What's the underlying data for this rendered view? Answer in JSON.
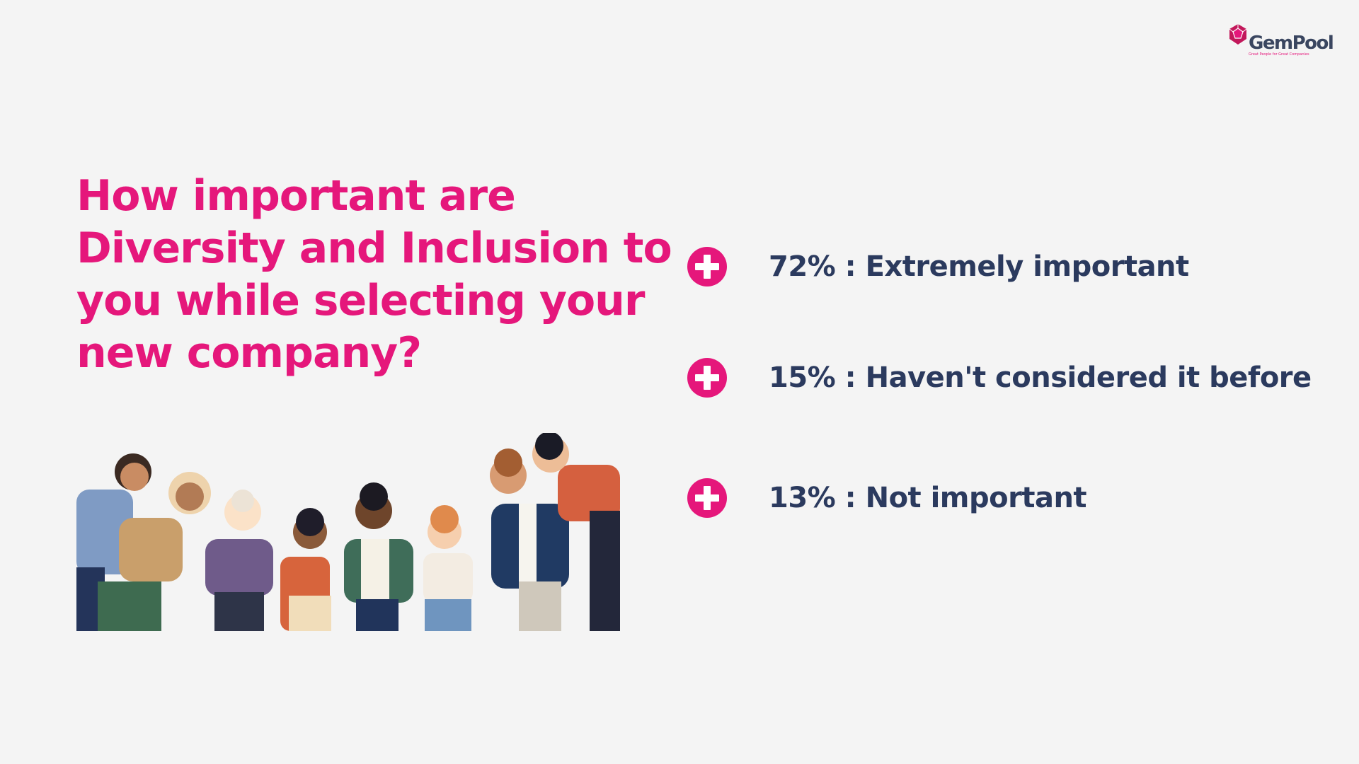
{
  "logo": {
    "name": "GemPool",
    "tagline": "Great People for Great Companies"
  },
  "title": {
    "lines": [
      "How important are",
      "Diversity and Inclusion to",
      "you while selecting your",
      "new company?"
    ]
  },
  "items": [
    "72% : Extremely important",
    "15% : Haven't considered it before",
    "13% : Not important"
  ]
}
